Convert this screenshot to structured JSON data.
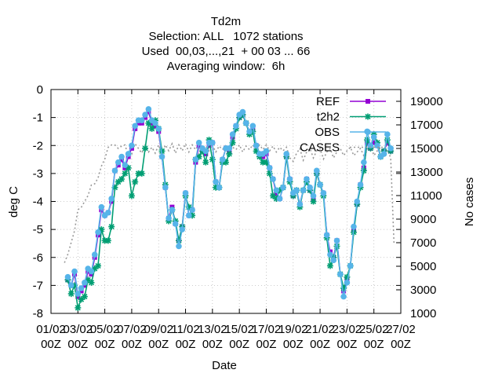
{
  "chart_data": {
    "type": "line",
    "title": "Td2m",
    "subtitle_lines": [
      "Selection: ALL   1072 stations",
      "Used  00,03,...,21  + 00 03 ... 66",
      "Averaging window:  6h"
    ],
    "xlabel": "Date",
    "ylabel": "deg C",
    "y2label": "No cases",
    "ylim": [
      -8,
      0
    ],
    "y2lim": [
      1000,
      20000
    ],
    "yticks": [
      0,
      -1,
      -2,
      -3,
      -4,
      -5,
      -6,
      -7,
      -8
    ],
    "y2ticks": [
      19000,
      17000,
      15000,
      13000,
      11000,
      9000,
      7000,
      5000,
      3000,
      1000
    ],
    "xlim": [
      0,
      26
    ],
    "xticks": [
      {
        "x": 0,
        "line1": "01/02",
        "line2": "00Z"
      },
      {
        "x": 2,
        "line1": "03/02",
        "line2": "00Z"
      },
      {
        "x": 4,
        "line1": "05/02",
        "line2": "00Z"
      },
      {
        "x": 6,
        "line1": "07/02",
        "line2": "00Z"
      },
      {
        "x": 8,
        "line1": "09/02",
        "line2": "00Z"
      },
      {
        "x": 10,
        "line1": "11/02",
        "line2": "00Z"
      },
      {
        "x": 12,
        "line1": "13/02",
        "line2": "00Z"
      },
      {
        "x": 14,
        "line1": "15/02",
        "line2": "00Z"
      },
      {
        "x": 16,
        "line1": "17/02",
        "line2": "00Z"
      },
      {
        "x": 18,
        "line1": "19/02",
        "line2": "00Z"
      },
      {
        "x": 20,
        "line1": "21/02",
        "line2": "00Z"
      },
      {
        "x": 22,
        "line1": "23/02",
        "line2": "00Z"
      },
      {
        "x": 24,
        "line1": "25/02",
        "line2": "00Z"
      },
      {
        "x": 26,
        "line1": "27/02",
        "line2": "00Z"
      }
    ],
    "grid": true,
    "legend_position": "top-right",
    "series": [
      {
        "name": "REF",
        "color": "#9400d3",
        "marker": "square",
        "axis": "y",
        "x": [
          1.25,
          1.5,
          1.75,
          2.0,
          2.25,
          2.5,
          2.75,
          3.0,
          3.25,
          3.5,
          3.75,
          4.0,
          4.25,
          4.5,
          4.75,
          5.0,
          5.25,
          5.5,
          5.75,
          6.0,
          6.25,
          6.5,
          6.75,
          7.0,
          7.25,
          7.5,
          7.75,
          8.0,
          8.25,
          8.5,
          8.75,
          9.0,
          9.25,
          9.5,
          9.75,
          10.0,
          10.25,
          10.5,
          10.75,
          11.0,
          11.25,
          11.5,
          11.75,
          12.0,
          12.25,
          12.5,
          12.75,
          13.0,
          13.25,
          13.5,
          13.75,
          14.0,
          14.25,
          14.5,
          14.75,
          15.0,
          15.25,
          15.5,
          15.75,
          16.0,
          16.25,
          16.5,
          16.75,
          17.0,
          17.25,
          17.5,
          17.75,
          18.0,
          18.25,
          18.5,
          18.75,
          19.0,
          19.25,
          19.5,
          19.75,
          20.0,
          20.25,
          20.5,
          20.75,
          21.0,
          21.25,
          21.5,
          21.75,
          22.0,
          22.25,
          22.5,
          22.75,
          23.0,
          23.25,
          23.5,
          23.75,
          24.0,
          24.25,
          24.5,
          24.75,
          25.0,
          25.25
        ],
        "values": [
          -6.8,
          -7.0,
          -6.6,
          -7.4,
          -7.2,
          -7.0,
          -6.5,
          -6.6,
          -6.0,
          -5.2,
          -4.3,
          -4.5,
          -4.4,
          -4.0,
          -2.9,
          -2.7,
          -2.5,
          -2.8,
          -2.4,
          -2.1,
          -1.4,
          -1.2,
          -1.2,
          -1.0,
          -0.8,
          -1.2,
          -1.3,
          -1.5,
          -2.4,
          -3.5,
          -4.6,
          -4.2,
          -4.8,
          -5.4,
          -4.9,
          -3.7,
          -4.5,
          -4.3,
          -2.6,
          -2.0,
          -2.2,
          -2.3,
          -2.0,
          -1.9,
          -3.3,
          -3.5,
          -2.5,
          -2.1,
          -2.2,
          -1.7,
          -1.3,
          -1.0,
          -0.9,
          -1.2,
          -1.5,
          -1.4,
          -2.0,
          -2.3,
          -2.4,
          -2.3,
          -2.8,
          -3.2,
          -3.7,
          -3.9,
          -3.5,
          -2.4,
          -3.2,
          -3.8,
          -3.6,
          -4.1,
          -3.6,
          -3.2,
          -3.6,
          -3.9,
          -3.0,
          -3.4,
          -3.7,
          -5.2,
          -5.8,
          -6.0,
          -5.4,
          -6.6,
          -7.2,
          -6.8,
          -6.3,
          -5.0,
          -4.1,
          -3.4,
          -2.8,
          -1.9,
          -2.1,
          -1.9,
          -2.0,
          -2.4,
          -2.2,
          -1.9,
          -2.2
        ],
        "note_x_unit": "days"
      },
      {
        "name": "t2h2",
        "color": "#009e73",
        "marker": "star",
        "axis": "y",
        "x": [
          1.25,
          1.5,
          1.75,
          2.0,
          2.25,
          2.5,
          2.75,
          3.0,
          3.25,
          3.5,
          3.75,
          4.0,
          4.25,
          4.5,
          4.75,
          5.0,
          5.25,
          5.5,
          5.75,
          6.0,
          6.25,
          6.5,
          6.75,
          7.0,
          7.25,
          7.5,
          7.75,
          8.0,
          8.25,
          8.5,
          8.75,
          9.0,
          9.25,
          9.5,
          9.75,
          10.0,
          10.25,
          10.5,
          10.75,
          11.0,
          11.25,
          11.5,
          11.75,
          12.0,
          12.25,
          12.5,
          12.75,
          13.0,
          13.25,
          13.5,
          13.75,
          14.0,
          14.25,
          14.5,
          14.75,
          15.0,
          15.25,
          15.5,
          15.75,
          16.0,
          16.25,
          16.5,
          16.75,
          17.0,
          17.25,
          17.5,
          17.75,
          18.0,
          18.25,
          18.5,
          18.75,
          19.0,
          19.25,
          19.5,
          19.75,
          20.0,
          20.25,
          20.5,
          20.75,
          21.0,
          21.25,
          21.5,
          21.75,
          22.0,
          22.25,
          22.5,
          22.75,
          23.0,
          23.25,
          23.5,
          23.75,
          24.0,
          24.25,
          24.5,
          24.75,
          25.0,
          25.25
        ],
        "values": [
          -6.8,
          -7.3,
          -7.0,
          -7.8,
          -7.5,
          -7.4,
          -6.8,
          -6.9,
          -6.4,
          -6.3,
          -5.0,
          -5.4,
          -5.4,
          -4.9,
          -3.5,
          -3.3,
          -3.2,
          -3.0,
          -2.8,
          -3.8,
          -3.3,
          -3.0,
          -3.0,
          -2.1,
          -1.2,
          -1.4,
          -1.1,
          -1.4,
          -2.2,
          -3.4,
          -4.7,
          -4.3,
          -4.7,
          -5.4,
          -4.9,
          -3.8,
          -4.2,
          -4.5,
          -2.5,
          -2.4,
          -2.2,
          -2.6,
          -1.8,
          -2.5,
          -3.5,
          -3.5,
          -2.6,
          -2.6,
          -2.3,
          -1.9,
          -1.4,
          -1.0,
          -0.9,
          -1.2,
          -1.6,
          -1.5,
          -2.2,
          -2.4,
          -2.6,
          -2.6,
          -3.0,
          -3.8,
          -3.9,
          -3.6,
          -3.5,
          -2.4,
          -3.3,
          -3.8,
          -3.6,
          -4.2,
          -3.6,
          -3.3,
          -3.6,
          -4.0,
          -3.0,
          -3.4,
          -3.8,
          -5.3,
          -6.3,
          -6.0,
          -5.6,
          -6.6,
          -7.1,
          -6.7,
          -6.3,
          -5.1,
          -4.1,
          -3.5,
          -2.9,
          -1.8,
          -2.1,
          -1.6,
          -1.9,
          -2.4,
          -2.2,
          -1.8,
          -2.2
        ],
        "note_x_unit": "days"
      },
      {
        "name": "OBS",
        "color": "#56b4e9",
        "marker": "circle",
        "axis": "y",
        "x": [
          1.25,
          1.5,
          1.75,
          2.0,
          2.25,
          2.5,
          2.75,
          3.0,
          3.25,
          3.5,
          3.75,
          4.0,
          4.25,
          4.5,
          4.75,
          5.0,
          5.25,
          5.5,
          5.75,
          6.0,
          6.25,
          6.5,
          6.75,
          7.0,
          7.25,
          7.5,
          7.75,
          8.0,
          8.25,
          8.5,
          8.75,
          9.0,
          9.25,
          9.5,
          9.75,
          10.0,
          10.25,
          10.5,
          10.75,
          11.0,
          11.25,
          11.5,
          11.75,
          12.0,
          12.25,
          12.5,
          12.75,
          13.0,
          13.25,
          13.5,
          13.75,
          14.0,
          14.25,
          14.5,
          14.75,
          15.0,
          15.25,
          15.5,
          15.75,
          16.0,
          16.25,
          16.5,
          16.75,
          17.0,
          17.25,
          17.5,
          17.75,
          18.0,
          18.25,
          18.5,
          18.75,
          19.0,
          19.25,
          19.5,
          19.75,
          20.0,
          20.25,
          20.5,
          20.75,
          21.0,
          21.25,
          21.5,
          21.75,
          22.0,
          22.25,
          22.5,
          22.75,
          23.0,
          23.25,
          23.5,
          23.75,
          24.0,
          24.25,
          24.5,
          24.75,
          25.0,
          25.25
        ],
        "values": [
          -6.7,
          -7.0,
          -6.5,
          -7.3,
          -7.1,
          -6.9,
          -6.4,
          -6.5,
          -5.9,
          -5.1,
          -4.2,
          -4.5,
          -4.4,
          -3.9,
          -2.9,
          -2.6,
          -2.4,
          -2.7,
          -2.3,
          -2.0,
          -1.3,
          -1.1,
          -1.1,
          -0.9,
          -0.7,
          -1.1,
          -1.2,
          -1.4,
          -2.4,
          -3.5,
          -4.6,
          -4.3,
          -4.8,
          -5.6,
          -5.0,
          -3.7,
          -4.5,
          -4.3,
          -2.5,
          -1.9,
          -2.1,
          -2.2,
          -1.9,
          -1.9,
          -3.3,
          -3.5,
          -2.5,
          -2.1,
          -2.1,
          -1.6,
          -1.3,
          -0.9,
          -0.8,
          -1.2,
          -1.5,
          -1.3,
          -2.0,
          -2.3,
          -2.3,
          -2.2,
          -2.8,
          -3.2,
          -3.6,
          -3.9,
          -3.5,
          -2.3,
          -3.2,
          -3.7,
          -3.6,
          -4.1,
          -3.6,
          -3.2,
          -3.5,
          -3.8,
          -2.9,
          -3.4,
          -3.7,
          -5.2,
          -5.9,
          -6.1,
          -5.4,
          -6.6,
          -7.4,
          -6.9,
          -6.3,
          -4.9,
          -4.0,
          -3.4,
          -2.6,
          -1.5,
          -2.0,
          -1.7,
          -2.0,
          -2.4,
          -2.3,
          -1.6,
          -2.1
        ],
        "note_x_unit": "days"
      },
      {
        "name": "CASES",
        "color": "#999999",
        "marker": "none",
        "dash": "dotted",
        "axis": "y2",
        "x": [
          1.0,
          1.25,
          1.5,
          1.75,
          2.0,
          2.25,
          2.5,
          2.75,
          3.0,
          3.25,
          3.5,
          3.75,
          4.0,
          4.25,
          4.5,
          4.75,
          5.0,
          5.25,
          5.5,
          5.75,
          6.0,
          6.25,
          6.5,
          6.75,
          7.0,
          7.25,
          7.5,
          7.75,
          8.0,
          8.25,
          8.5,
          8.75,
          9.0,
          9.25,
          9.5,
          9.75,
          10.0,
          10.25,
          10.5,
          10.75,
          11.0,
          11.25,
          11.5,
          11.75,
          12.0,
          12.25,
          12.5,
          12.75,
          13.0,
          13.25,
          13.5,
          13.75,
          14.0,
          14.25,
          14.5,
          14.75,
          15.0,
          15.25,
          15.5,
          15.75,
          16.0,
          16.25,
          16.5,
          16.75,
          17.0,
          17.25,
          17.5,
          17.75,
          18.0,
          18.25,
          18.5,
          18.75,
          19.0,
          19.25,
          19.5,
          19.75,
          20.0,
          20.25,
          20.5,
          20.75,
          21.0,
          21.25,
          21.5,
          21.75,
          22.0,
          22.25,
          22.5,
          22.75,
          23.0,
          23.25,
          23.5,
          23.75,
          24.0,
          24.25,
          24.5,
          24.75,
          25.0,
          25.25,
          25.5
        ],
        "values": [
          5300,
          6000,
          7000,
          8000,
          9800,
          10000,
          10500,
          11000,
          11900,
          12000,
          12500,
          13500,
          14100,
          15100,
          15300,
          15300,
          15000,
          15200,
          15300,
          14400,
          14500,
          15400,
          15000,
          14600,
          15300,
          14700,
          15100,
          14600,
          15300,
          14500,
          15300,
          14800,
          15400,
          14600,
          15300,
          14800,
          15400,
          14700,
          15300,
          14900,
          15300,
          14700,
          15200,
          14800,
          15300,
          14700,
          15200,
          14900,
          15300,
          14700,
          15100,
          14900,
          15300,
          14700,
          15200,
          14900,
          15300,
          14800,
          15300,
          14900,
          15300,
          14800,
          15200,
          14700,
          15100,
          14800,
          15100,
          14200,
          13900,
          14600,
          15000,
          14000,
          14700,
          15000,
          14200,
          14800,
          15000,
          14100,
          14700,
          15000,
          14200,
          14700,
          15000,
          14400,
          14800,
          15100,
          14400,
          14700,
          15000,
          14400,
          14800,
          15200,
          14400,
          14800,
          15100,
          14400,
          14900,
          14200,
          6800
        ],
        "note_x_unit": "days"
      }
    ]
  }
}
